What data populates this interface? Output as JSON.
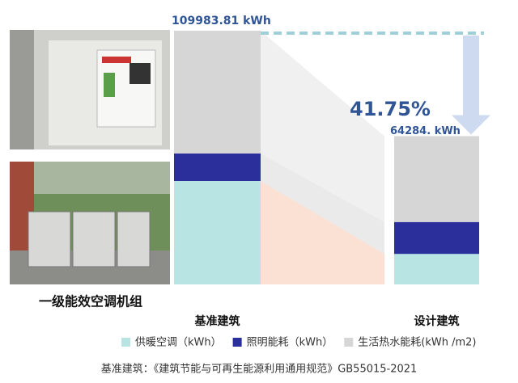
{
  "chart_data": {
    "type": "stacked_bar",
    "categories": [
      "基准建筑",
      "设计建筑"
    ],
    "series": [
      {
        "name": "供暖空调（kWh）",
        "color": "#b9e4e4",
        "values": [
          44840,
          13230
        ]
      },
      {
        "name": "照明能耗（kWh）",
        "color": "#2b2f9c",
        "values": [
          11910,
          13820
        ]
      },
      {
        "name": "生活热水能耗(kWh /m2)",
        "color": "#d6d6d6",
        "values": [
          53233.81,
          37234
        ]
      }
    ],
    "ylim": [
      0,
      110000
    ],
    "total_labels": [
      "109983.81 kWh",
      "64284.  kWh"
    ],
    "annotation": "41.75%",
    "caption": "一级能效空调机组",
    "footnote": "基准建筑：《建筑节能与可再生能源利用通用规范》GB55015-2021"
  }
}
